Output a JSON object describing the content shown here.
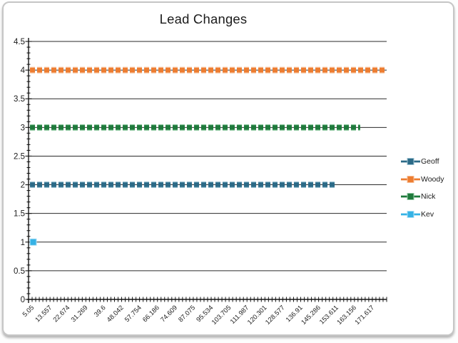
{
  "frame": {
    "background": "#ffffff",
    "border_color": "#c6c6c6"
  },
  "chart_data": {
    "type": "line",
    "title": "Lead Changes",
    "xlabel": "",
    "ylabel": "",
    "grid": "horizontal",
    "legend_position": "right",
    "axis_color": "#141414",
    "grid_color": "#2a2a2a",
    "tick_label_color": "#1c1c1c",
    "ylim": [
      0,
      4.5
    ],
    "y_major_step": 0.5,
    "y_minor_step": 0.1,
    "x_minor_tick_count": 100,
    "x_label_every_n_ticks": 5,
    "y_tick_labels": [
      "4.5",
      "4",
      "3.5",
      "3",
      "2.5",
      "2",
      "1.5",
      "1",
      "0.5",
      "0"
    ],
    "x_tick_labels": [
      "5.05",
      "13.557",
      "22.674",
      "31.269",
      "39.6",
      "48.042",
      "57.754",
      "66.186",
      "74.609",
      "87.075",
      "95.534",
      "103.705",
      "111.987",
      "120.301",
      "128.577",
      "136.91",
      "145.286",
      "153.611",
      "163.156",
      "171.617"
    ],
    "series": [
      {
        "name": "Geoff",
        "value": 2,
        "color": "#2b6a87",
        "halo": "#9cc2d2",
        "start_frac": 0.004,
        "end_frac": 0.86,
        "single_point": false
      },
      {
        "name": "Woody",
        "value": 4,
        "color": "#ed7d31",
        "halo": "#f6bd95",
        "start_frac": 0.004,
        "end_frac": 0.996,
        "single_point": false
      },
      {
        "name": "Nick",
        "value": 3,
        "color": "#1f7a3c",
        "halo": "#93cba4",
        "start_frac": 0.004,
        "end_frac": 0.926,
        "single_point": false
      },
      {
        "name": "Kev",
        "value": 1,
        "color": "#35b2e5",
        "halo": "#a8def5",
        "start_frac": 0.004,
        "end_frac": 0.022,
        "single_point": true
      }
    ]
  }
}
